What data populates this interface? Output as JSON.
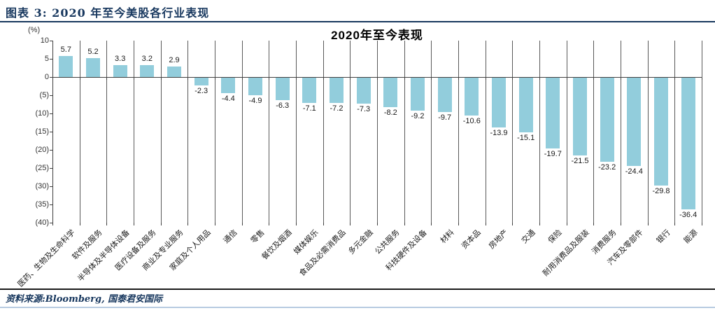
{
  "header": {
    "title": "图表 3: 2020 年至今美股各行业表现"
  },
  "chart_data": {
    "type": "bar",
    "title": "2020年至今表现",
    "unit_label": "(%)",
    "categories": [
      "医药、生物及生命科学",
      "软件及服务",
      "半导体及半导体设备",
      "医疗设备及服务",
      "商业及专业服务",
      "家庭及个人用品",
      "通信",
      "零售",
      "餐饮及烟酒",
      "媒体娱乐",
      "食品及必需消费品",
      "多元金融",
      "公共服务",
      "科技硬件及设备",
      "材料",
      "资本品",
      "房地产",
      "交通",
      "保险",
      "耐用消费品及服装",
      "消费服务",
      "汽车及零部件",
      "银行",
      "能源"
    ],
    "values": [
      5.7,
      5.2,
      3.3,
      3.2,
      2.9,
      -2.3,
      -4.4,
      -4.9,
      -6.3,
      -7.1,
      -7.2,
      -7.3,
      -8.2,
      -9.2,
      -9.7,
      -10.6,
      -13.9,
      -15.1,
      -19.7,
      -21.5,
      -23.2,
      -24.4,
      -29.8,
      -36.4
    ],
    "value_labels": [
      "5.7",
      "5.2",
      "3.3",
      "3.2",
      "2.9",
      "-2.3",
      "-4.4",
      "-4.9",
      "-6.3",
      "-7.1",
      "-7.2",
      "-7.3",
      "-8.2",
      "-9.2",
      "-9.7",
      "-10.6",
      "-13.9",
      "-15.1",
      "-19.7",
      "-21.5",
      "-23.2",
      "-24.4",
      "-29.8",
      "-36.4"
    ],
    "ylim": [
      -40,
      10
    ],
    "ytick_step": 5,
    "ytick_labels": [
      "10",
      "5",
      "0",
      "(5)",
      "(10)",
      "(15)",
      "(20)",
      "(25)",
      "(30)",
      "(35)",
      "(40)"
    ],
    "xlabel": "",
    "ylabel": "(%)",
    "legend": "none",
    "grid": "vertical-category-boundaries",
    "bar_color": "#92CDDC"
  },
  "footer": {
    "source": "资料来源:Bloomberg, 国泰君安国际"
  },
  "colors": {
    "accent_navy": "#17375E",
    "bar": "#92CDDC",
    "gridline": "#595959",
    "axis": "#404040",
    "footer_rule": "#1a1a1a",
    "bottom_rule": "#B7CBE1"
  }
}
